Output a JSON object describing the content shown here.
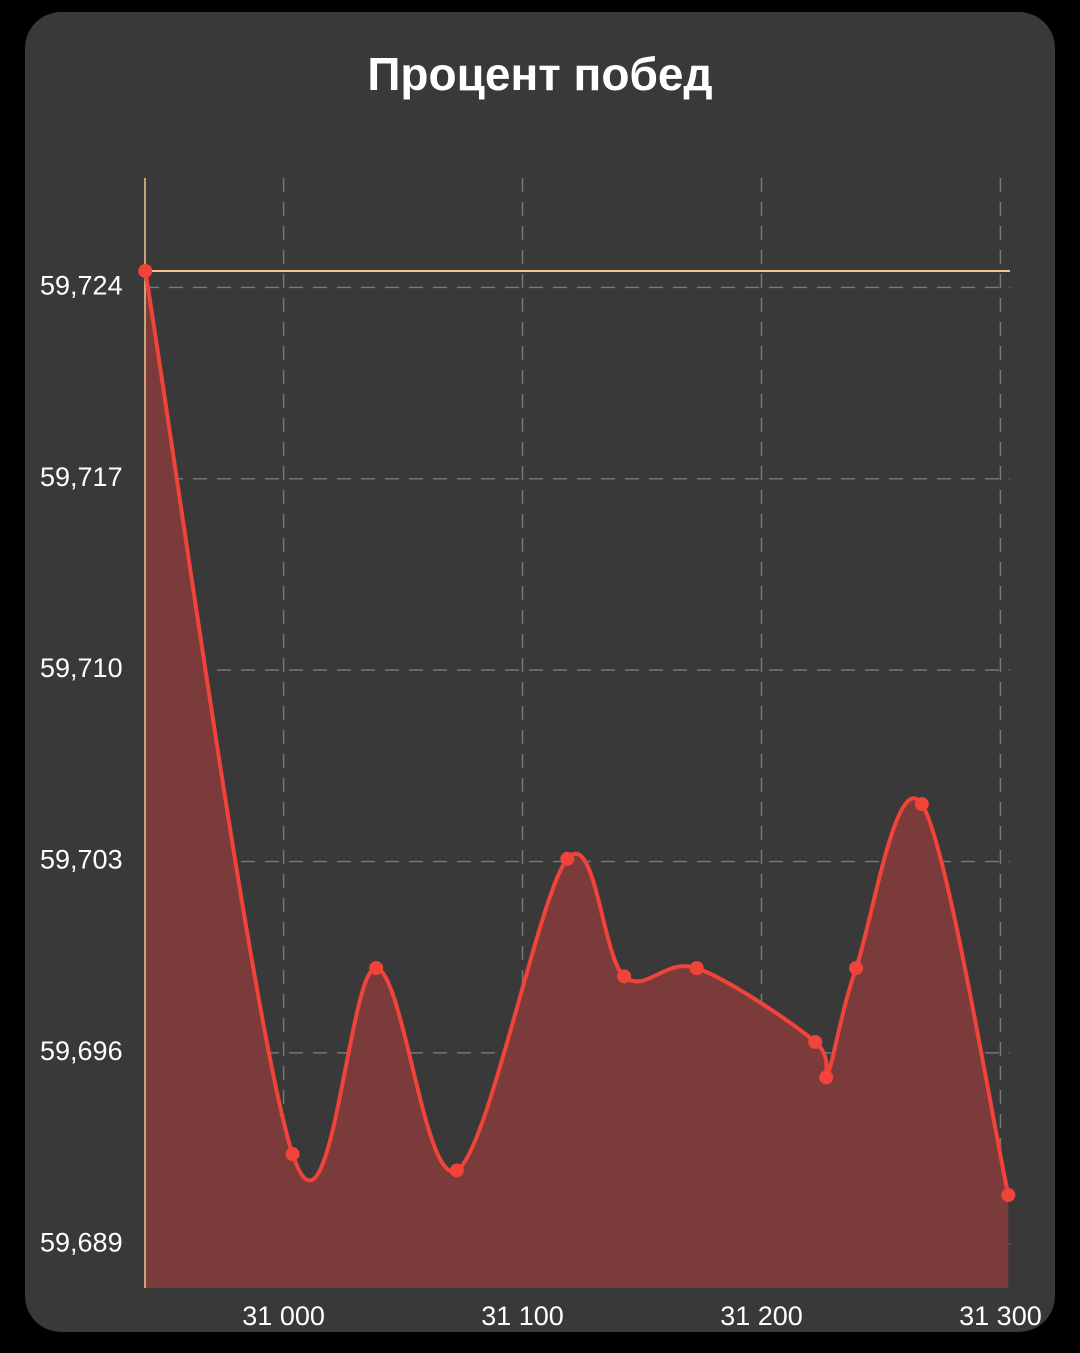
{
  "chart_data": {
    "type": "area",
    "title": "Процент побед",
    "x": [
      30942.1,
      31003.75,
      31038.75,
      31072.5,
      31118.75,
      31142.5,
      31172.9,
      31222.5,
      31227.1,
      31239.6,
      31267.1,
      31303.3
    ],
    "series": [
      {
        "color": "#f0433a",
        "fill": "#7a3b3a",
        "values": [
          59.7246,
          59.6923,
          59.6991,
          59.6917,
          59.7031,
          59.6988,
          59.6991,
          59.6964,
          59.6951,
          59.6991,
          59.7051,
          59.6908
        ]
      }
    ],
    "limit_line": {
      "value": 59.7246,
      "color": "#f2c58a"
    },
    "xlim": [
      30942,
      31304
    ],
    "ylim": [
      59.6874,
      59.728
    ],
    "xticks": [
      {
        "value": 31000,
        "label": "31 000"
      },
      {
        "value": 31100,
        "label": "31 100"
      },
      {
        "value": 31200,
        "label": "31 200"
      },
      {
        "value": 31300,
        "label": "31 300"
      }
    ],
    "yticks": [
      {
        "value": 59.689,
        "label": "59,689"
      },
      {
        "value": 59.696,
        "label": "59,696"
      },
      {
        "value": 59.703,
        "label": "59,703"
      },
      {
        "value": 59.71,
        "label": "59,710"
      },
      {
        "value": 59.717,
        "label": "59,717"
      },
      {
        "value": 59.724,
        "label": "59,724"
      }
    ],
    "grid": true
  }
}
